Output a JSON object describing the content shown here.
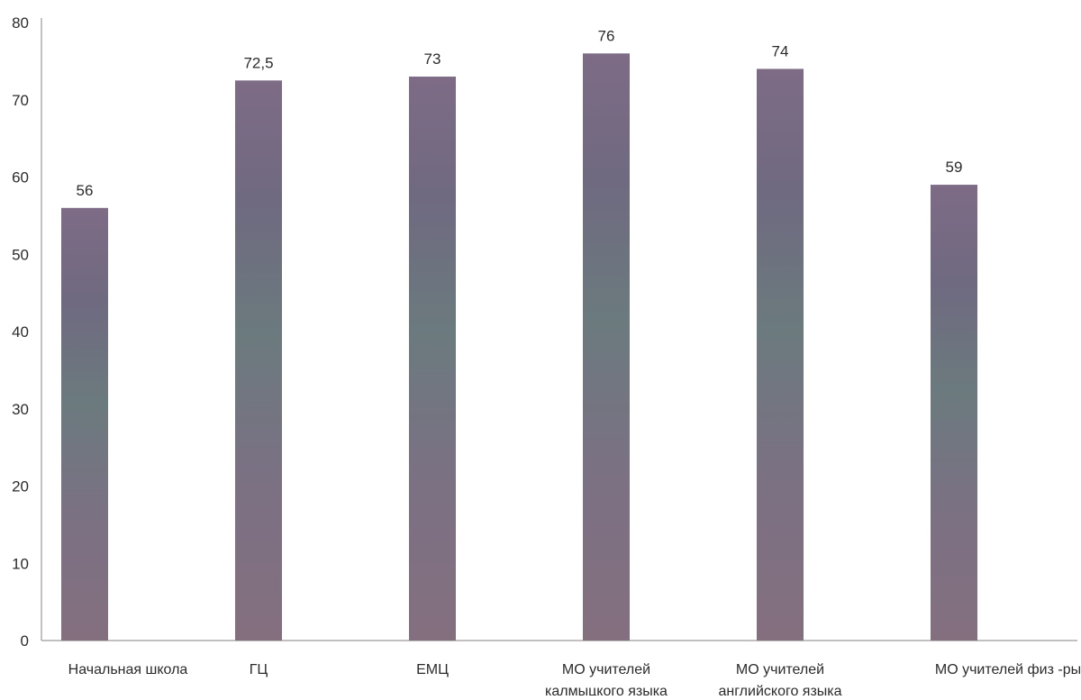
{
  "chart_data": {
    "type": "bar",
    "categories": [
      [
        "Начальная школа"
      ],
      [
        "ГЦ"
      ],
      [
        "ЕМЦ"
      ],
      [
        "МО учителей",
        "калмыцкого языка"
      ],
      [
        "МО учителей",
        "английского языка"
      ],
      [
        "МО учителей физ -ры"
      ]
    ],
    "values": [
      56,
      72.5,
      73,
      76,
      74,
      59
    ],
    "value_labels": [
      "56",
      "72,5",
      "73",
      "76",
      "74",
      "59"
    ],
    "y_ticks": [
      0,
      10,
      20,
      30,
      40,
      50,
      60,
      70,
      80
    ],
    "ylim": [
      0,
      80
    ],
    "title": "",
    "xlabel": "",
    "ylabel": "",
    "grid": false,
    "legend": "none",
    "colors": {
      "bar_top": "#7e6b86",
      "bar_mid": "#6b7a7e",
      "bar_bottom": "#846f7f",
      "axis": "#9a9a9a",
      "text": "#2b2b2b"
    }
  }
}
